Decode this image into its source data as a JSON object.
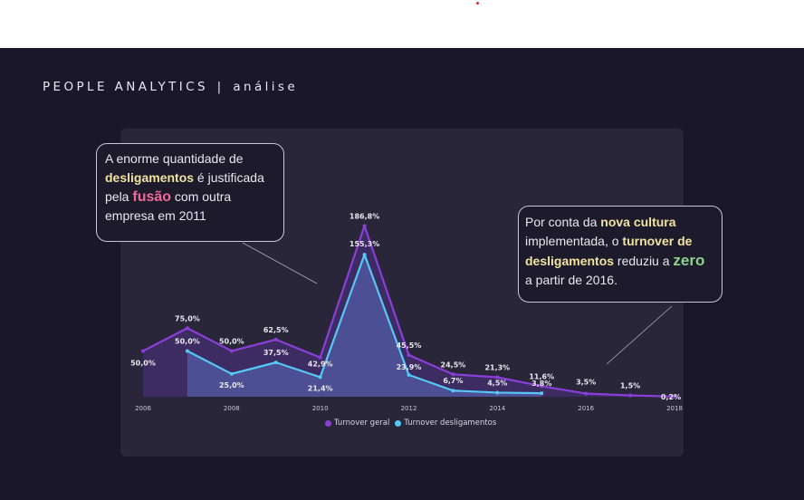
{
  "header": {
    "title": "PEOPLE ANALYTICS",
    "separator": "|",
    "subtitle": "análise"
  },
  "callouts": {
    "left": {
      "part1": "A enorme quantidade de ",
      "highlight1": "desligamentos",
      "part2": " é justificada pela ",
      "highlight2": "fusão",
      "part3": " com outra empresa em 2011"
    },
    "right": {
      "part1": "Por conta da ",
      "highlight1": "nova cultura",
      "part2": " implementada, o ",
      "highlight2": "turnover de desligamentos",
      "part3": " reduziu a ",
      "highlight3": "zero",
      "part4": " a partir de 2016."
    }
  },
  "colors": {
    "background": "#1a172b",
    "panel": "#292639",
    "series_geral": "#8b3fd9",
    "series_desligamentos": "#56c8f5",
    "highlight_yellow": "#f2e3a0",
    "highlight_pink": "#f06a9c",
    "highlight_green": "#8fd28f"
  },
  "chart_data": {
    "type": "line",
    "x_ticks": [
      "2006",
      "2008",
      "2010",
      "2012",
      "2014",
      "2016",
      "2018"
    ],
    "xlim": [
      2006,
      2018
    ],
    "ylim": [
      0,
      200
    ],
    "grid": false,
    "legend_position": "bottom",
    "series": [
      {
        "name": "Turnover geral",
        "points": [
          {
            "x": 2006,
            "y": 50.0,
            "label": "50,0%"
          },
          {
            "x": 2007,
            "y": 75.0,
            "label": "75,0%"
          },
          {
            "x": 2008,
            "y": 50.0,
            "label": "50,0%"
          },
          {
            "x": 2009,
            "y": 62.5,
            "label": "62,5%"
          },
          {
            "x": 2010,
            "y": 42.9,
            "label": "42,9%"
          },
          {
            "x": 2011,
            "y": 186.8,
            "label": "186,8%"
          },
          {
            "x": 2012,
            "y": 45.5,
            "label": "45,5%"
          },
          {
            "x": 2013,
            "y": 24.5,
            "label": "24,5%"
          },
          {
            "x": 2014,
            "y": 21.3,
            "label": "21,3%"
          },
          {
            "x": 2015,
            "y": 11.6,
            "label": "11,6%"
          },
          {
            "x": 2016,
            "y": 3.5,
            "label": "3,5%"
          },
          {
            "x": 2017,
            "y": 1.5,
            "label": "1,5%"
          },
          {
            "x": 2018,
            "y": 0.2,
            "label": "0,2%"
          }
        ]
      },
      {
        "name": "Turnover desligamentos",
        "points": [
          {
            "x": 2007,
            "y": 50.0,
            "label": "50,0%"
          },
          {
            "x": 2008,
            "y": 25.0,
            "label": "25,0%"
          },
          {
            "x": 2009,
            "y": 37.5,
            "label": "37,5%"
          },
          {
            "x": 2010,
            "y": 21.4,
            "label": "21,4%"
          },
          {
            "x": 2011,
            "y": 155.3,
            "label": "155,3%"
          },
          {
            "x": 2012,
            "y": 23.9,
            "label": "23,9%"
          },
          {
            "x": 2013,
            "y": 6.7,
            "label": "6,7%"
          },
          {
            "x": 2014,
            "y": 4.5,
            "label": "4,5%"
          },
          {
            "x": 2015,
            "y": 3.8,
            "label": "3,8%"
          }
        ]
      }
    ]
  }
}
